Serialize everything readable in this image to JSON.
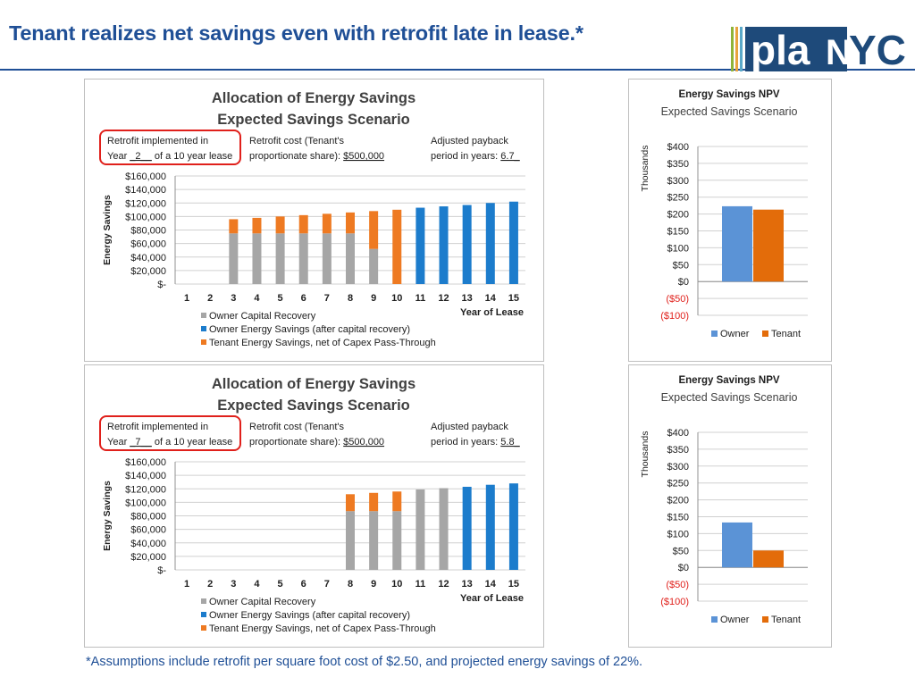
{
  "slide": {
    "title": "Tenant realizes net savings even with retrofit late in lease.*",
    "footnote": "*Assumptions include retrofit per square foot cost of $2.50, and projected energy savings of 22%.",
    "logo": {
      "text_left": "pla",
      "text_n": "N",
      "text_right": "YC"
    }
  },
  "colors": {
    "owner_capital": "#a6a6a6",
    "owner_energy": "#1c7ccc",
    "tenant": "#ee7a22",
    "npv_owner": "#5b93d6",
    "npv_tenant": "#e36c0a",
    "title_blue": "#1f4f96"
  },
  "chart_data": [
    {
      "type": "bar",
      "stacked": true,
      "title": "Allocation of Energy Savings",
      "subtitle": "Expected Savings Scenario",
      "xlabel": "Year of Lease",
      "ylabel": "Energy Savings",
      "ylim": [
        0,
        160000
      ],
      "yticks": [
        "$-",
        "$20,000",
        "$40,000",
        "$60,000",
        "$80,000",
        "$100,000",
        "$120,000",
        "$140,000",
        "$160,000"
      ],
      "grid": true,
      "legend_position": "bottom",
      "categories": [
        "1",
        "2",
        "3",
        "4",
        "5",
        "6",
        "7",
        "8",
        "9",
        "10",
        "11",
        "12",
        "13",
        "14",
        "15"
      ],
      "series": [
        {
          "name": "Owner Capital Recovery",
          "color_key": "owner_capital",
          "values": [
            0,
            0,
            75000,
            75000,
            75000,
            75000,
            75000,
            75000,
            52000,
            0,
            0,
            0,
            0,
            0,
            0
          ]
        },
        {
          "name": "Owner Energy Savings (after capital recovery)",
          "color_key": "owner_energy",
          "values": [
            0,
            0,
            0,
            0,
            0,
            0,
            0,
            0,
            0,
            0,
            113000,
            115000,
            117000,
            120000,
            122000
          ]
        },
        {
          "name": "Tenant Energy Savings, net of Capex Pass-Through",
          "color_key": "tenant",
          "values": [
            0,
            0,
            21000,
            23000,
            25000,
            27000,
            29000,
            31000,
            56000,
            110000,
            0,
            0,
            0,
            0,
            0
          ]
        }
      ],
      "info_box": {
        "retrofit_line1": "Retrofit implemented in",
        "retrofit_line2_prefix": "Year ",
        "retrofit_year": "_2__",
        "retrofit_line2_suffix": " of a 10 year lease",
        "cost_line1": "Retrofit cost (Tenant's",
        "cost_line2_prefix": "proportionate share): ",
        "cost_value": "$500,000",
        "payback_line1": "Adjusted payback",
        "payback_line2_prefix": "period in years: ",
        "payback_value": "6.7_"
      }
    },
    {
      "type": "bar",
      "title": "Energy Savings NPV",
      "subtitle": "Expected Savings Scenario",
      "ylabel": "Thousands",
      "ylim": [
        -100,
        400
      ],
      "yticks": [
        "($100)",
        "($50)",
        "$0",
        "$50",
        "$100",
        "$150",
        "$200",
        "$250",
        "$300",
        "$350",
        "$400"
      ],
      "grid": true,
      "legend_position": "bottom",
      "series": [
        {
          "name": "Owner",
          "color_key": "npv_owner",
          "values": [
            223
          ]
        },
        {
          "name": "Tenant",
          "color_key": "npv_tenant",
          "values": [
            213
          ]
        }
      ]
    },
    {
      "type": "bar",
      "stacked": true,
      "title": "Allocation of Energy Savings",
      "subtitle": "Expected Savings Scenario",
      "xlabel": "Year of Lease",
      "ylabel": "Energy Savings",
      "ylim": [
        0,
        160000
      ],
      "yticks": [
        "$-",
        "$20,000",
        "$40,000",
        "$60,000",
        "$80,000",
        "$100,000",
        "$120,000",
        "$140,000",
        "$160,000"
      ],
      "grid": true,
      "legend_position": "bottom",
      "categories": [
        "1",
        "2",
        "3",
        "4",
        "5",
        "6",
        "7",
        "8",
        "9",
        "10",
        "11",
        "12",
        "13",
        "14",
        "15"
      ],
      "series": [
        {
          "name": "Owner Capital Recovery",
          "color_key": "owner_capital",
          "values": [
            0,
            0,
            0,
            0,
            0,
            0,
            0,
            87000,
            87000,
            87000,
            119000,
            121000,
            0,
            0,
            0
          ]
        },
        {
          "name": "Owner Energy Savings (after capital recovery)",
          "color_key": "owner_energy",
          "values": [
            0,
            0,
            0,
            0,
            0,
            0,
            0,
            0,
            0,
            0,
            0,
            0,
            123000,
            126000,
            128000
          ]
        },
        {
          "name": "Tenant Energy Savings, net of Capex Pass-Through",
          "color_key": "tenant",
          "values": [
            0,
            0,
            0,
            0,
            0,
            0,
            0,
            25000,
            27000,
            29000,
            0,
            0,
            0,
            0,
            0
          ]
        }
      ],
      "info_box": {
        "retrofit_line1": "Retrofit implemented in",
        "retrofit_line2_prefix": "Year ",
        "retrofit_year": "_7__",
        "retrofit_line2_suffix": " of a 10 year lease",
        "cost_line1": "Retrofit cost (Tenant's",
        "cost_line2_prefix": "proportionate share): ",
        "cost_value": "$500,000",
        "payback_line1": "Adjusted payback",
        "payback_line2_prefix": "period in years: ",
        "payback_value": "5.8_"
      }
    },
    {
      "type": "bar",
      "title": "Energy Savings NPV",
      "subtitle": "Expected Savings Scenario",
      "ylabel": "Thousands",
      "ylim": [
        -100,
        400
      ],
      "yticks": [
        "($100)",
        "($50)",
        "$0",
        "$50",
        "$100",
        "$150",
        "$200",
        "$250",
        "$300",
        "$350",
        "$400"
      ],
      "grid": true,
      "legend_position": "bottom",
      "series": [
        {
          "name": "Owner",
          "color_key": "npv_owner",
          "values": [
            133
          ]
        },
        {
          "name": "Tenant",
          "color_key": "npv_tenant",
          "values": [
            50
          ]
        }
      ]
    }
  ]
}
